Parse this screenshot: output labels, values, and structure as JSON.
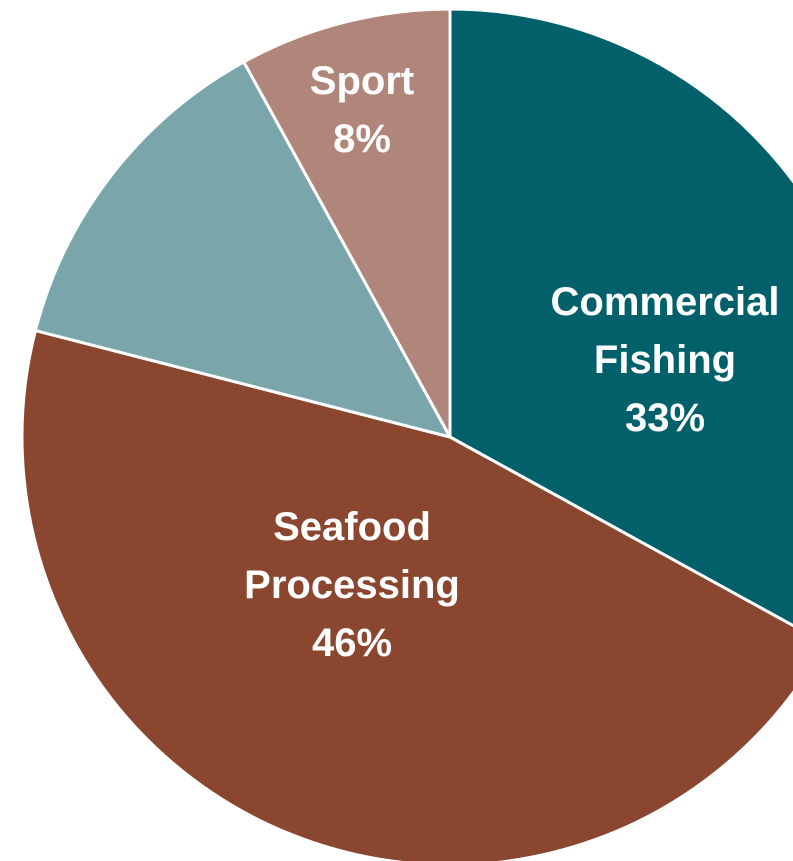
{
  "chart_data": {
    "type": "pie",
    "categories": [
      "Commercial Fishing",
      "Seafood Processing",
      null,
      "Sport"
    ],
    "values": [
      33,
      46,
      13,
      8
    ],
    "value_labels": [
      "33%",
      "46%",
      null,
      "8%"
    ],
    "colors": [
      "#02606b",
      "#8b4630",
      "#7aa6ab",
      "#b0857a"
    ]
  }
}
